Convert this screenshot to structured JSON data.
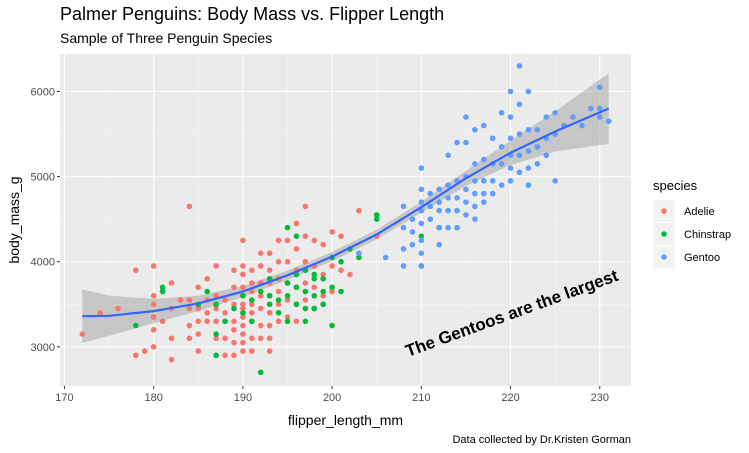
{
  "chart_data": {
    "type": "scatter",
    "title": "Palmer Penguins: Body Mass vs. Flipper Length",
    "subtitle": "Sample of Three Penguin Species",
    "xlabel": "flipper_length_mm",
    "ylabel": "body_mass_g",
    "caption": "Data collected by Dr.Kristen Gorman",
    "annotation": "The Gentoos are the largest",
    "xlim": [
      169.5,
      233.5
    ],
    "ylim": [
      2540,
      6440
    ],
    "xticks": [
      170,
      180,
      190,
      200,
      210,
      220,
      230
    ],
    "yticks": [
      3000,
      4000,
      5000,
      6000
    ],
    "grid": true,
    "legend_title": "species",
    "legend_position": "right",
    "smooth": {
      "method": "loess",
      "color": "#3366FF",
      "points": [
        [
          172,
          3360
        ],
        [
          175,
          3365
        ],
        [
          180,
          3420
        ],
        [
          185,
          3510
        ],
        [
          190,
          3650
        ],
        [
          195,
          3840
        ],
        [
          200,
          4060
        ],
        [
          205,
          4320
        ],
        [
          210,
          4640
        ],
        [
          215,
          4980
        ],
        [
          220,
          5280
        ],
        [
          225,
          5530
        ],
        [
          231,
          5800
        ]
      ]
    },
    "series": [
      {
        "name": "Adelie",
        "color": "#F8766D",
        "points": [
          [
            172,
            3150
          ],
          [
            174,
            3400
          ],
          [
            176,
            3450
          ],
          [
            178,
            3900
          ],
          [
            178,
            2900
          ],
          [
            179,
            2950
          ],
          [
            180,
            3950
          ],
          [
            180,
            3600
          ],
          [
            180,
            3500
          ],
          [
            180,
            3350
          ],
          [
            180,
            3200
          ],
          [
            180,
            3000
          ],
          [
            181,
            3650
          ],
          [
            181,
            3300
          ],
          [
            182,
            3750
          ],
          [
            182,
            3450
          ],
          [
            182,
            3100
          ],
          [
            182,
            2850
          ],
          [
            183,
            3550
          ],
          [
            184,
            3550
          ],
          [
            184,
            3450
          ],
          [
            184,
            3250
          ],
          [
            184,
            3100
          ],
          [
            184,
            4650
          ],
          [
            185,
            3700
          ],
          [
            185,
            3450
          ],
          [
            185,
            3300
          ],
          [
            185,
            3150
          ],
          [
            185,
            2950
          ],
          [
            186,
            3800
          ],
          [
            186,
            3550
          ],
          [
            186,
            3400
          ],
          [
            186,
            3300
          ],
          [
            187,
            3950
          ],
          [
            187,
            3600
          ],
          [
            187,
            3450
          ],
          [
            187,
            3300
          ],
          [
            187,
            3100
          ],
          [
            188,
            3550
          ],
          [
            188,
            3400
          ],
          [
            188,
            3300
          ],
          [
            188,
            3100
          ],
          [
            188,
            2900
          ],
          [
            189,
            3900
          ],
          [
            189,
            3700
          ],
          [
            189,
            3500
          ],
          [
            189,
            3300
          ],
          [
            189,
            3200
          ],
          [
            189,
            3050
          ],
          [
            189,
            2900
          ],
          [
            190,
            4250
          ],
          [
            190,
            3950
          ],
          [
            190,
            3850
          ],
          [
            190,
            3700
          ],
          [
            190,
            3600
          ],
          [
            190,
            3500
          ],
          [
            190,
            3450
          ],
          [
            190,
            3350
          ],
          [
            190,
            3250
          ],
          [
            190,
            3150
          ],
          [
            190,
            3050
          ],
          [
            190,
            2950
          ],
          [
            191,
            3900
          ],
          [
            191,
            3750
          ],
          [
            191,
            3650
          ],
          [
            191,
            3500
          ],
          [
            191,
            3400
          ],
          [
            191,
            3300
          ],
          [
            191,
            3100
          ],
          [
            191,
            2950
          ],
          [
            192,
            4100
          ],
          [
            192,
            3950
          ],
          [
            192,
            3750
          ],
          [
            192,
            3600
          ],
          [
            192,
            3450
          ],
          [
            192,
            3250
          ],
          [
            192,
            3100
          ],
          [
            193,
            4100
          ],
          [
            193,
            3900
          ],
          [
            193,
            3750
          ],
          [
            193,
            3600
          ],
          [
            193,
            3400
          ],
          [
            193,
            3250
          ],
          [
            193,
            3100
          ],
          [
            193,
            2950
          ],
          [
            194,
            4250
          ],
          [
            194,
            4000
          ],
          [
            194,
            3800
          ],
          [
            194,
            3650
          ],
          [
            194,
            3500
          ],
          [
            194,
            3300
          ],
          [
            195,
            4250
          ],
          [
            195,
            4000
          ],
          [
            195,
            3750
          ],
          [
            195,
            3550
          ],
          [
            195,
            3350
          ],
          [
            196,
            4450
          ],
          [
            196,
            4150
          ],
          [
            196,
            3900
          ],
          [
            196,
            3700
          ],
          [
            196,
            3500
          ],
          [
            196,
            3300
          ],
          [
            197,
            4650
          ],
          [
            197,
            4300
          ],
          [
            197,
            4000
          ],
          [
            197,
            3750
          ],
          [
            197,
            3550
          ],
          [
            198,
            4250
          ],
          [
            198,
            3950
          ],
          [
            198,
            3700
          ],
          [
            198,
            3450
          ],
          [
            199,
            4200
          ],
          [
            199,
            3850
          ],
          [
            199,
            3600
          ],
          [
            200,
            4350
          ],
          [
            200,
            3950
          ],
          [
            200,
            3650
          ],
          [
            201,
            4300
          ],
          [
            201,
            3900
          ],
          [
            202,
            3850
          ],
          [
            203,
            4600
          ],
          [
            205,
            4300
          ]
        ]
      },
      {
        "name": "Chinstrap",
        "color": "#00BA38",
        "points": [
          [
            178,
            3250
          ],
          [
            181,
            3700
          ],
          [
            181,
            3650
          ],
          [
            185,
            3500
          ],
          [
            186,
            3650
          ],
          [
            187,
            3150
          ],
          [
            187,
            2900
          ],
          [
            187,
            3500
          ],
          [
            188,
            3300
          ],
          [
            189,
            3450
          ],
          [
            190,
            3600
          ],
          [
            190,
            3400
          ],
          [
            191,
            3300
          ],
          [
            191,
            3550
          ],
          [
            192,
            2700
          ],
          [
            192,
            3650
          ],
          [
            193,
            3500
          ],
          [
            193,
            3800
          ],
          [
            193,
            3600
          ],
          [
            194,
            3400
          ],
          [
            194,
            3550
          ],
          [
            195,
            4400
          ],
          [
            195,
            3750
          ],
          [
            195,
            3600
          ],
          [
            195,
            3300
          ],
          [
            196,
            3850
          ],
          [
            196,
            3700
          ],
          [
            196,
            4300
          ],
          [
            196,
            3500
          ],
          [
            197,
            3900
          ],
          [
            197,
            3650
          ],
          [
            197,
            3450
          ],
          [
            197,
            3300
          ],
          [
            198,
            3800
          ],
          [
            198,
            3600
          ],
          [
            198,
            3850
          ],
          [
            198,
            3450
          ],
          [
            199,
            3800
          ],
          [
            199,
            3500
          ],
          [
            199,
            3650
          ],
          [
            200,
            4050
          ],
          [
            200,
            3700
          ],
          [
            200,
            3250
          ],
          [
            201,
            4000
          ],
          [
            201,
            3650
          ],
          [
            202,
            4150
          ],
          [
            203,
            4050
          ],
          [
            205,
            4550
          ],
          [
            205,
            4500
          ],
          [
            210,
            3950
          ],
          [
            210,
            4300
          ],
          [
            212,
            4400
          ]
        ]
      },
      {
        "name": "Gentoo",
        "color": "#619CFF",
        "points": [
          [
            203,
            4100
          ],
          [
            206,
            4050
          ],
          [
            208,
            4650
          ],
          [
            208,
            4400
          ],
          [
            208,
            4150
          ],
          [
            208,
            3950
          ],
          [
            209,
            4500
          ],
          [
            209,
            4350
          ],
          [
            209,
            4200
          ],
          [
            210,
            5100
          ],
          [
            210,
            4850
          ],
          [
            210,
            4700
          ],
          [
            210,
            4600
          ],
          [
            210,
            4450
          ],
          [
            210,
            4250
          ],
          [
            210,
            4100
          ],
          [
            210,
            3950
          ],
          [
            211,
            4800
          ],
          [
            211,
            4650
          ],
          [
            211,
            4500
          ],
          [
            212,
            4850
          ],
          [
            212,
            4700
          ],
          [
            212,
            4600
          ],
          [
            212,
            4400
          ],
          [
            212,
            4200
          ],
          [
            213,
            5250
          ],
          [
            213,
            4900
          ],
          [
            213,
            4750
          ],
          [
            213,
            4600
          ],
          [
            213,
            4400
          ],
          [
            214,
            5400
          ],
          [
            214,
            4950
          ],
          [
            214,
            4750
          ],
          [
            214,
            4600
          ],
          [
            214,
            4400
          ],
          [
            215,
            5700
          ],
          [
            215,
            5400
          ],
          [
            215,
            5000
          ],
          [
            215,
            4850
          ],
          [
            215,
            4700
          ],
          [
            215,
            4550
          ],
          [
            216,
            5550
          ],
          [
            216,
            5150
          ],
          [
            216,
            4950
          ],
          [
            216,
            4800
          ],
          [
            216,
            4650
          ],
          [
            216,
            4500
          ],
          [
            217,
            5600
          ],
          [
            217,
            5200
          ],
          [
            217,
            4950
          ],
          [
            217,
            4800
          ],
          [
            217,
            4700
          ],
          [
            218,
            5450
          ],
          [
            218,
            5150
          ],
          [
            218,
            4950
          ],
          [
            218,
            4800
          ],
          [
            219,
            5750
          ],
          [
            219,
            5350
          ],
          [
            219,
            5150
          ],
          [
            219,
            4900
          ],
          [
            220,
            6000
          ],
          [
            220,
            5700
          ],
          [
            220,
            5450
          ],
          [
            220,
            5250
          ],
          [
            220,
            5100
          ],
          [
            220,
            4950
          ],
          [
            221,
            5850
          ],
          [
            221,
            5500
          ],
          [
            221,
            5250
          ],
          [
            221,
            5050
          ],
          [
            222,
            6000
          ],
          [
            222,
            5550
          ],
          [
            222,
            5300
          ],
          [
            222,
            5100
          ],
          [
            222,
            4900
          ],
          [
            223,
            5550
          ],
          [
            223,
            5350
          ],
          [
            223,
            5150
          ],
          [
            224,
            5700
          ],
          [
            224,
            5450
          ],
          [
            224,
            5250
          ],
          [
            225,
            5750
          ],
          [
            225,
            5500
          ],
          [
            226,
            5600
          ],
          [
            227,
            5700
          ],
          [
            228,
            5600
          ],
          [
            229,
            5800
          ],
          [
            230,
            6050
          ],
          [
            230,
            5800
          ],
          [
            230,
            5700
          ],
          [
            231,
            5650
          ],
          [
            221,
            6300
          ],
          [
            225,
            4950
          ]
        ]
      }
    ]
  }
}
